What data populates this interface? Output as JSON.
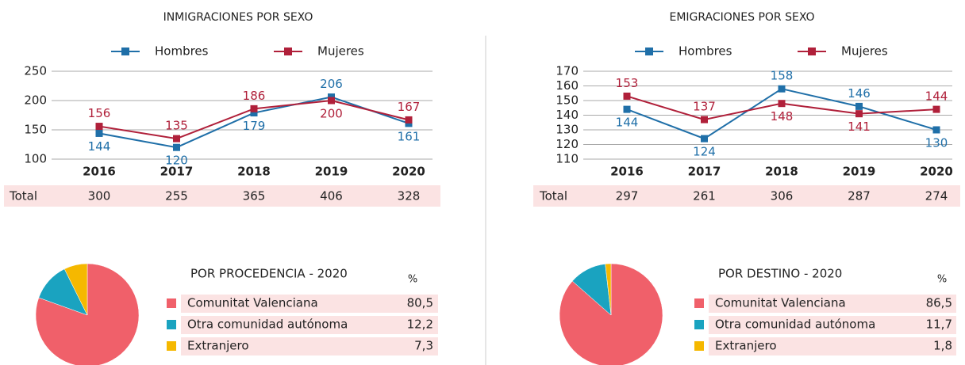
{
  "chart_data": [
    {
      "type": "line",
      "title": "INMIGRACIONES POR SEXO",
      "categories": [
        "2016",
        "2017",
        "2018",
        "2019",
        "2020"
      ],
      "series": [
        {
          "name": "Hombres",
          "color": "#1f6fa8",
          "values": [
            144,
            120,
            179,
            206,
            161
          ]
        },
        {
          "name": "Mujeres",
          "color": "#b0203a",
          "values": [
            156,
            135,
            186,
            200,
            167
          ]
        }
      ],
      "ylim": [
        100,
        250
      ],
      "yticks": [
        100,
        150,
        200,
        250
      ],
      "grid": true,
      "table": {
        "label": "Total",
        "values": [
          300,
          255,
          365,
          406,
          328
        ]
      }
    },
    {
      "type": "line",
      "title": "EMIGRACIONES POR SEXO",
      "categories": [
        "2016",
        "2017",
        "2018",
        "2019",
        "2020"
      ],
      "series": [
        {
          "name": "Hombres",
          "color": "#1f6fa8",
          "values": [
            144,
            124,
            158,
            146,
            130
          ]
        },
        {
          "name": "Mujeres",
          "color": "#b0203a",
          "values": [
            153,
            137,
            148,
            141,
            144
          ]
        }
      ],
      "ylim": [
        110,
        170
      ],
      "yticks": [
        110,
        120,
        130,
        140,
        150,
        160,
        170
      ],
      "grid": true,
      "table": {
        "label": "Total",
        "values": [
          297,
          261,
          306,
          287,
          274
        ]
      }
    },
    {
      "type": "pie",
      "title": "POR PROCEDENCIA - 2020",
      "value_header": "%",
      "categories": [
        "Comunitat Valenciana",
        "Otra comunidad autónoma",
        "Extranjero"
      ],
      "values": [
        80.5,
        12.2,
        7.3
      ],
      "value_labels": [
        "80,5",
        "12,2",
        "7,3"
      ],
      "colors": [
        "#f0606a",
        "#1aa3c0",
        "#f5b800"
      ]
    },
    {
      "type": "pie",
      "title": "POR DESTINO - 2020",
      "value_header": "%",
      "categories": [
        "Comunitat Valenciana",
        "Otra comunidad autónoma",
        "Extranjero"
      ],
      "values": [
        86.5,
        11.7,
        1.8
      ],
      "value_labels": [
        "86,5",
        "11,7",
        "1,8"
      ],
      "colors": [
        "#f0606a",
        "#1aa3c0",
        "#f5b800"
      ]
    }
  ]
}
